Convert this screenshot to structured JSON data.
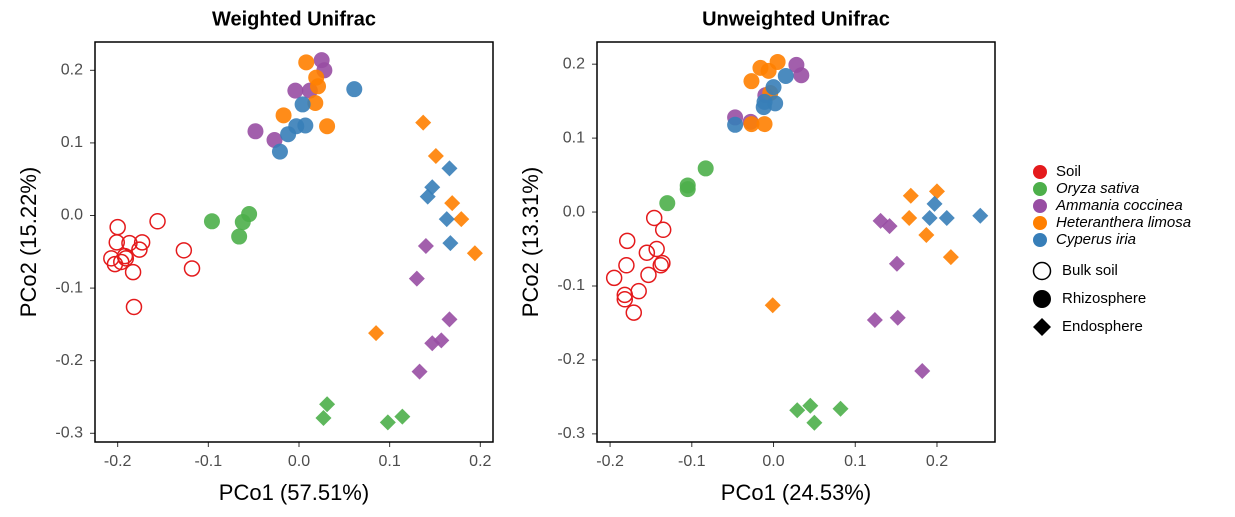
{
  "chart_data": [
    {
      "type": "scatter",
      "title": "Weighted Unifrac",
      "x_label": "PCo1 (57.51%)",
      "y_label": "PCo2 (15.22%)",
      "xlim": [
        -0.225,
        0.214
      ],
      "ylim": [
        -0.312,
        0.239
      ],
      "xticks": [
        -0.2,
        -0.1,
        {
          "value": 0,
          "label": "0.0"
        },
        0.1,
        0.2
      ],
      "yticks": [
        -0.3,
        -0.2,
        -0.1,
        {
          "value": 0,
          "label": "0.0"
        },
        0.1,
        0.2
      ],
      "series": [
        {
          "color": "#e41a1c",
          "marker": "open-circle",
          "x": [
            -0.2,
            -0.201,
            -0.187,
            -0.173,
            -0.176,
            -0.191,
            -0.207,
            -0.203,
            -0.196,
            -0.183,
            -0.182,
            -0.156,
            -0.127,
            -0.118,
            -0.192
          ],
          "y": [
            -0.016,
            -0.037,
            -0.038,
            -0.037,
            -0.047,
            -0.059,
            -0.059,
            -0.067,
            -0.064,
            -0.078,
            -0.126,
            -0.008,
            -0.048,
            -0.073,
            -0.056
          ]
        },
        {
          "color": "#4daf4a",
          "marker": "circle",
          "x": [
            -0.096,
            -0.055,
            -0.062,
            -0.066
          ],
          "y": [
            -0.008,
            0.002,
            -0.009,
            -0.029
          ]
        },
        {
          "color": "#4daf4a",
          "marker": "diamond",
          "x": [
            0.031,
            0.027,
            0.098,
            0.114
          ],
          "y": [
            -0.26,
            -0.279,
            -0.285,
            -0.277
          ]
        },
        {
          "color": "#984ea3",
          "marker": "circle",
          "x": [
            -0.048,
            -0.027,
            -0.004,
            0.012,
            0.025,
            0.028
          ],
          "y": [
            0.116,
            0.104,
            0.172,
            0.172,
            0.214,
            0.2
          ]
        },
        {
          "color": "#984ea3",
          "marker": "diamond",
          "x": [
            0.14,
            0.13,
            0.166,
            0.147,
            0.157,
            0.133
          ],
          "y": [
            -0.042,
            -0.087,
            -0.143,
            -0.176,
            -0.172,
            -0.215
          ]
        },
        {
          "color": "#ff7f00",
          "marker": "circle",
          "x": [
            0.008,
            0.019,
            0.021,
            0.018,
            -0.017,
            0.031
          ],
          "y": [
            0.211,
            0.19,
            0.178,
            0.155,
            0.138,
            0.123
          ]
        },
        {
          "color": "#ff7f00",
          "marker": "diamond",
          "x": [
            0.137,
            0.151,
            0.169,
            0.179,
            0.194,
            0.085
          ],
          "y": [
            0.128,
            0.082,
            0.017,
            -0.005,
            -0.052,
            -0.162
          ]
        },
        {
          "color": "#377eb8",
          "marker": "circle",
          "x": [
            0.061,
            0.004,
            0.007,
            -0.003,
            -0.012,
            -0.021
          ],
          "y": [
            0.174,
            0.153,
            0.124,
            0.123,
            0.112,
            0.088
          ]
        },
        {
          "color": "#377eb8",
          "marker": "diamond",
          "x": [
            0.166,
            0.147,
            0.142,
            0.163,
            0.167
          ],
          "y": [
            0.065,
            0.039,
            0.026,
            -0.005,
            -0.038
          ]
        }
      ]
    },
    {
      "type": "scatter",
      "title": "Unweighted Unifrac",
      "x_label": "PCo1 (24.53%)",
      "y_label": "PCo2 (13.31%)",
      "xlim": [
        -0.216,
        0.271
      ],
      "ylim": [
        -0.311,
        0.23
      ],
      "xticks": [
        -0.2,
        -0.1,
        {
          "value": 0,
          "label": "0.0"
        },
        0.1,
        0.2
      ],
      "yticks": [
        -0.3,
        -0.2,
        -0.1,
        {
          "value": 0,
          "label": "0.0"
        },
        0.1,
        0.2
      ],
      "series": [
        {
          "color": "#e41a1c",
          "marker": "open-circle",
          "x": [
            -0.146,
            -0.135,
            -0.179,
            -0.143,
            -0.155,
            -0.136,
            -0.138,
            -0.18,
            -0.195,
            -0.153,
            -0.165,
            -0.182,
            -0.182,
            -0.171
          ],
          "y": [
            -0.008,
            -0.024,
            -0.039,
            -0.05,
            -0.055,
            -0.069,
            -0.072,
            -0.072,
            -0.089,
            -0.085,
            -0.107,
            -0.112,
            -0.118,
            -0.136
          ]
        },
        {
          "color": "#4daf4a",
          "marker": "circle",
          "x": [
            -0.083,
            -0.105,
            -0.105,
            -0.13
          ],
          "y": [
            0.059,
            0.031,
            0.036,
            0.012
          ]
        },
        {
          "color": "#4daf4a",
          "marker": "diamond",
          "x": [
            0.029,
            0.045,
            0.05,
            0.082
          ],
          "y": [
            -0.268,
            -0.262,
            -0.285,
            -0.266
          ]
        },
        {
          "color": "#984ea3",
          "marker": "circle",
          "x": [
            -0.047,
            -0.028,
            -0.01,
            0.028,
            0.034
          ],
          "y": [
            0.128,
            0.122,
            0.158,
            0.199,
            0.185
          ]
        },
        {
          "color": "#984ea3",
          "marker": "diamond",
          "x": [
            0.131,
            0.142,
            0.151,
            0.124,
            0.152,
            0.182
          ],
          "y": [
            -0.012,
            -0.019,
            -0.07,
            -0.146,
            -0.143,
            -0.215
          ]
        },
        {
          "color": "#ff7f00",
          "marker": "circle",
          "x": [
            -0.027,
            -0.016,
            -0.006,
            0.005,
            -0.011,
            -0.027,
            -0.004
          ],
          "y": [
            0.177,
            0.195,
            0.191,
            0.203,
            0.119,
            0.119,
            0.161
          ]
        },
        {
          "color": "#ff7f00",
          "marker": "diamond",
          "x": [
            0.168,
            0.2,
            0.166,
            0.187,
            0.217,
            -0.001
          ],
          "y": [
            0.022,
            0.028,
            -0.008,
            -0.031,
            -0.061,
            -0.126
          ]
        },
        {
          "color": "#377eb8",
          "marker": "circle",
          "x": [
            0.015,
            0,
            0.002,
            -0.012,
            -0.011,
            -0.047
          ],
          "y": [
            0.184,
            0.169,
            0.147,
            0.142,
            0.149,
            0.118
          ]
        },
        {
          "color": "#377eb8",
          "marker": "diamond",
          "x": [
            0.197,
            0.191,
            0.212,
            0.253
          ],
          "y": [
            0.011,
            -0.008,
            -0.008,
            -0.005
          ]
        }
      ]
    }
  ],
  "legend": {
    "groups": [
      {
        "name": "Soil",
        "color": "#e41a1c",
        "italic": false
      },
      {
        "name": "Oryza sativa",
        "color": "#4daf4a",
        "italic": true
      },
      {
        "name": "Ammania coccinea",
        "color": "#984ea3",
        "italic": true
      },
      {
        "name": "Heteranthera limosa",
        "color": "#ff7f00",
        "italic": true
      },
      {
        "name": "Cyperus iria",
        "color": "#377eb8",
        "italic": true
      }
    ],
    "compartments": [
      {
        "name": "Bulk soil",
        "marker": "open-circle"
      },
      {
        "name": "Rhizosphere",
        "marker": "circle"
      },
      {
        "name": "Endosphere",
        "marker": "diamond"
      }
    ]
  }
}
